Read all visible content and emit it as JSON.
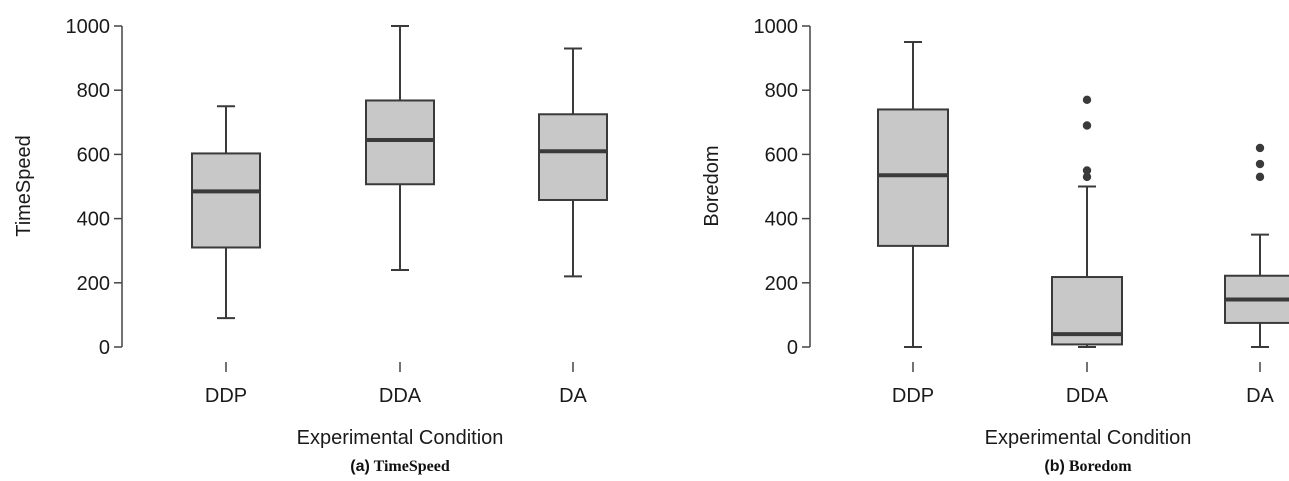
{
  "chart_data": [
    {
      "type": "box",
      "panel": "(a)",
      "caption_label": "(a)",
      "caption_title": "TimeSpeed",
      "xlabel": "Experimental Condition",
      "ylabel": "TimeSpeed",
      "ylim": [
        0,
        1000
      ],
      "yticks": [
        0,
        200,
        400,
        600,
        800,
        1000
      ],
      "categories": [
        "DDP",
        "DDA",
        "DA"
      ],
      "boxes": [
        {
          "category": "DDP",
          "whisker_low": 90,
          "q1": 310,
          "median": 485,
          "q3": 603,
          "whisker_high": 750,
          "outliers": []
        },
        {
          "category": "DDA",
          "whisker_low": 240,
          "q1": 507,
          "median": 645,
          "q3": 768,
          "whisker_high": 1000,
          "outliers": []
        },
        {
          "category": "DA",
          "whisker_low": 220,
          "q1": 458,
          "median": 610,
          "q3": 725,
          "whisker_high": 930,
          "outliers": []
        }
      ],
      "box_color": "#c8c8c8",
      "line_color": "#3a3a3a"
    },
    {
      "type": "box",
      "panel": "(b)",
      "caption_label": "(b)",
      "caption_title": "Boredom",
      "xlabel": "Experimental Condition",
      "ylabel": "Boredom",
      "ylim": [
        0,
        1000
      ],
      "yticks": [
        0,
        200,
        400,
        600,
        800,
        1000
      ],
      "categories": [
        "DDP",
        "DDA",
        "DA"
      ],
      "boxes": [
        {
          "category": "DDP",
          "whisker_low": 0,
          "q1": 315,
          "median": 535,
          "q3": 740,
          "whisker_high": 950,
          "outliers": []
        },
        {
          "category": "DDA",
          "whisker_low": 0,
          "q1": 8,
          "median": 40,
          "q3": 218,
          "whisker_high": 500,
          "outliers": [
            530,
            550,
            690,
            770
          ]
        },
        {
          "category": "DA",
          "whisker_low": 0,
          "q1": 75,
          "median": 148,
          "q3": 222,
          "whisker_high": 350,
          "outliers": [
            530,
            570,
            620
          ]
        }
      ],
      "box_color": "#c8c8c8",
      "line_color": "#3a3a3a"
    }
  ]
}
